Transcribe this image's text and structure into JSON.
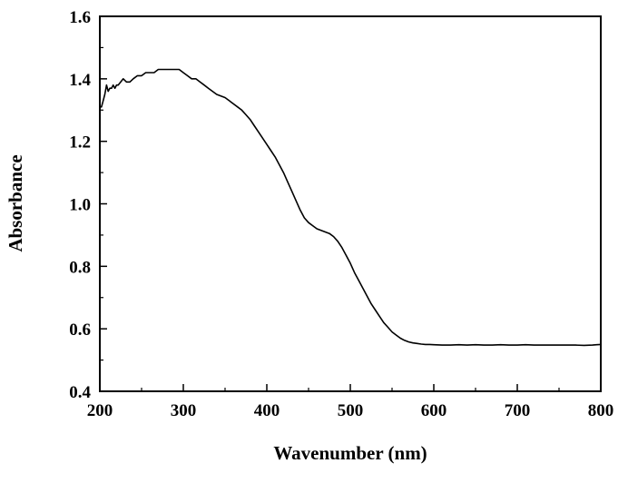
{
  "chart_data": {
    "type": "line",
    "title": "",
    "xlabel": "Wavenumber (nm)",
    "ylabel": "Absorbance",
    "xlim": [
      200,
      800
    ],
    "ylim": [
      0.4,
      1.6
    ],
    "x_ticks": [
      200,
      300,
      400,
      500,
      600,
      700,
      800
    ],
    "x_tick_labels": [
      "200",
      "300",
      "400",
      "500",
      "600",
      "700",
      "800"
    ],
    "y_ticks": [
      0.4,
      0.6,
      0.8,
      1.0,
      1.2,
      1.4,
      1.6
    ],
    "y_tick_labels": [
      "0.4",
      "0.6",
      "0.8",
      "1.0",
      "1.2",
      "1.4",
      "1.6"
    ],
    "grid": false,
    "legend": false,
    "line_color": "#000000",
    "series": [
      {
        "x": [
          200,
          202,
          204,
          206,
          208,
          210,
          212,
          214,
          216,
          218,
          220,
          222,
          225,
          228,
          232,
          236,
          240,
          245,
          250,
          255,
          260,
          265,
          270,
          275,
          280,
          285,
          290,
          295,
          300,
          305,
          310,
          315,
          320,
          325,
          330,
          335,
          340,
          345,
          350,
          355,
          360,
          365,
          370,
          375,
          380,
          385,
          390,
          395,
          400,
          405,
          410,
          415,
          420,
          425,
          430,
          435,
          440,
          445,
          450,
          455,
          460,
          465,
          470,
          475,
          480,
          485,
          490,
          495,
          500,
          505,
          510,
          515,
          520,
          525,
          530,
          535,
          540,
          545,
          550,
          555,
          560,
          565,
          570,
          575,
          580,
          585,
          590,
          595,
          600,
          610,
          620,
          630,
          640,
          650,
          660,
          670,
          680,
          690,
          700,
          710,
          720,
          730,
          740,
          750,
          760,
          770,
          780,
          790,
          795,
          800
        ],
        "y": [
          1.31,
          1.31,
          1.33,
          1.35,
          1.38,
          1.36,
          1.37,
          1.37,
          1.38,
          1.37,
          1.38,
          1.38,
          1.39,
          1.4,
          1.39,
          1.39,
          1.4,
          1.41,
          1.41,
          1.42,
          1.42,
          1.42,
          1.43,
          1.43,
          1.43,
          1.43,
          1.43,
          1.43,
          1.42,
          1.41,
          1.4,
          1.4,
          1.39,
          1.38,
          1.37,
          1.36,
          1.35,
          1.345,
          1.34,
          1.33,
          1.32,
          1.31,
          1.3,
          1.285,
          1.27,
          1.25,
          1.23,
          1.21,
          1.19,
          1.17,
          1.15,
          1.125,
          1.1,
          1.07,
          1.04,
          1.01,
          0.98,
          0.955,
          0.94,
          0.93,
          0.92,
          0.915,
          0.91,
          0.905,
          0.895,
          0.88,
          0.86,
          0.835,
          0.81,
          0.78,
          0.755,
          0.73,
          0.705,
          0.68,
          0.66,
          0.64,
          0.62,
          0.605,
          0.59,
          0.58,
          0.57,
          0.563,
          0.558,
          0.555,
          0.553,
          0.551,
          0.55,
          0.55,
          0.549,
          0.548,
          0.548,
          0.549,
          0.548,
          0.549,
          0.548,
          0.548,
          0.549,
          0.548,
          0.548,
          0.549,
          0.548,
          0.548,
          0.548,
          0.548,
          0.548,
          0.548,
          0.547,
          0.548,
          0.549,
          0.55
        ]
      }
    ]
  }
}
